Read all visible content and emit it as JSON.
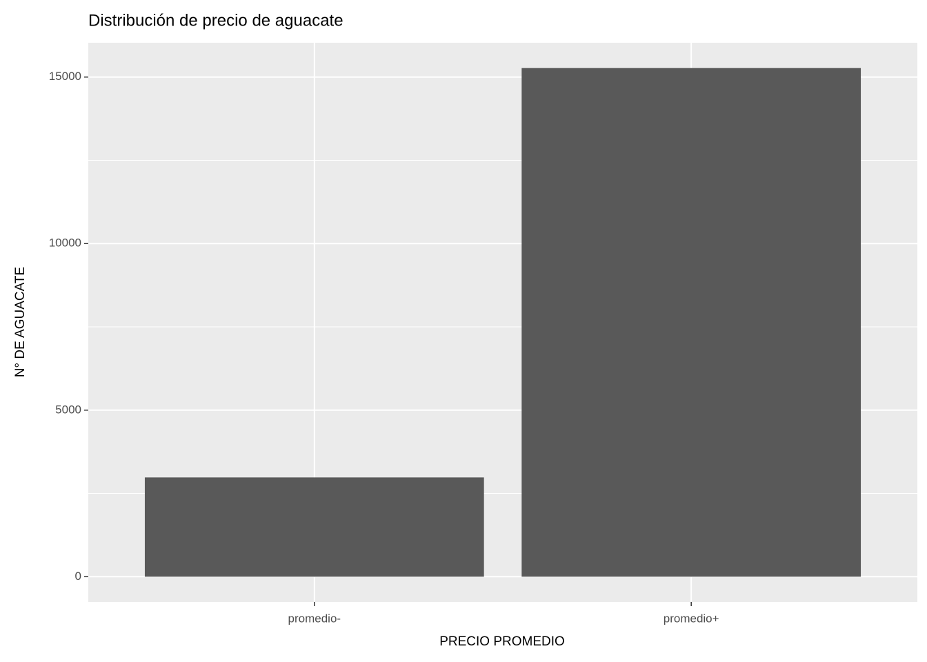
{
  "chart_data": {
    "type": "bar",
    "title": "Distribución de precio de aguacate",
    "x_label": "PRECIO PROMEDIO",
    "y_label": "N° DE  AGUACATE",
    "categories": [
      "promedio-",
      "promedio+"
    ],
    "values": [
      2980,
      15270
    ],
    "color": "#595959",
    "ylim": [
      -760,
      16030
    ],
    "yticks": [
      0,
      5000,
      10000,
      15000
    ],
    "minor_yticks": [
      2500,
      7500,
      12500
    ],
    "grid": true
  }
}
